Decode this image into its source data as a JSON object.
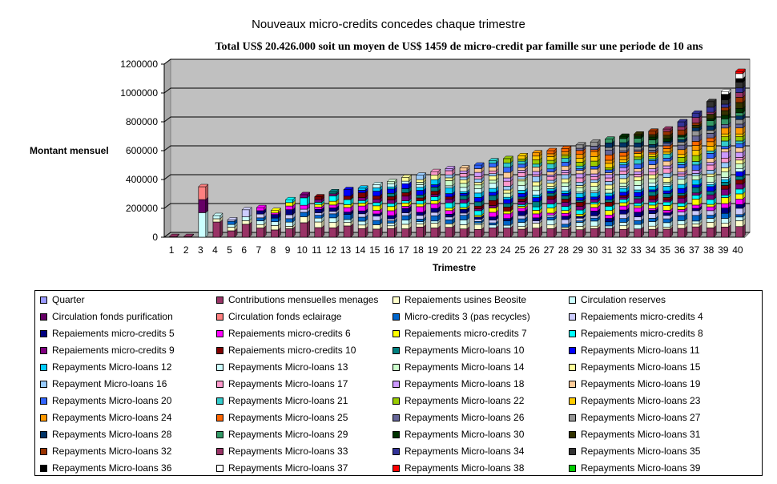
{
  "title": "Nouveaux micro-credits concedes chaque trimestre",
  "subtitle": "Total US$ 20.426.000 soit un moyen de US$ 1459 de micro-credit  par famille sur une periode de 10 ans",
  "chart_data": {
    "type": "bar",
    "stacked": true,
    "three_d": true,
    "plot_background": "#c0c0c0",
    "xlabel": "Trimestre",
    "ylabel": "Montant mensuel",
    "ylim": [
      0,
      1200000
    ],
    "yticks": [
      "0",
      "200000",
      "400000",
      "600000",
      "800000",
      "1000000",
      "1200000"
    ],
    "grid": true,
    "legend_position": "bottom",
    "categories": [
      "1",
      "2",
      "3",
      "4",
      "5",
      "6",
      "7",
      "8",
      "9",
      "10",
      "11",
      "12",
      "13",
      "14",
      "15",
      "16",
      "17",
      "18",
      "19",
      "20",
      "21",
      "22",
      "23",
      "24",
      "25",
      "26",
      "27",
      "28",
      "29",
      "30",
      "31",
      "32",
      "33",
      "34",
      "35",
      "36",
      "37",
      "38",
      "39",
      "40"
    ],
    "totals": [
      5000,
      5000,
      350000,
      150000,
      120000,
      190000,
      205000,
      185000,
      260000,
      295000,
      280000,
      315000,
      330000,
      340000,
      365000,
      385000,
      415000,
      430000,
      455000,
      475000,
      480000,
      500000,
      530000,
      545000,
      565000,
      585000,
      600000,
      615000,
      640000,
      660000,
      680000,
      700000,
      715000,
      735000,
      750000,
      800000,
      860000,
      940000,
      1010000,
      1150000
    ],
    "series": [
      {
        "name": "Quarter",
        "color": "#9999ff"
      },
      {
        "name": "Contributions mensuelles menages",
        "color": "#993366"
      },
      {
        "name": "Repaiements usines Beosite",
        "color": "#ffffcc"
      },
      {
        "name": "Circulation reserves",
        "color": "#ccffff"
      },
      {
        "name": "Circulation fonds purification",
        "color": "#660066"
      },
      {
        "name": "Circulation fonds eclairage",
        "color": "#ff8080"
      },
      {
        "name": "Micro-credits 3 (pas recycles)",
        "color": "#0066cc"
      },
      {
        "name": "Repaiements micro-credits 4",
        "color": "#ccccff"
      },
      {
        "name": "Repaiements micro-credits 5",
        "color": "#000080"
      },
      {
        "name": "Repaiements micro-credits 6",
        "color": "#ff00ff"
      },
      {
        "name": "Repaiements micro-credits 7",
        "color": "#ffff00"
      },
      {
        "name": "Repaiements micro-credits 8",
        "color": "#00ffff"
      },
      {
        "name": "Repaiements micro-credits 9",
        "color": "#800080"
      },
      {
        "name": "Repaiements micro-credits 10",
        "color": "#800000"
      },
      {
        "name": "Repayments Micro-loans 10",
        "color": "#008080"
      },
      {
        "name": "Repayments Micro-loans 11",
        "color": "#0000ff"
      },
      {
        "name": "Repayments Micro-loans 12",
        "color": "#00ccff"
      },
      {
        "name": "Repayments Micro-loans 13",
        "color": "#ccffff"
      },
      {
        "name": "Repayments Micro-loans 14",
        "color": "#ccffcc"
      },
      {
        "name": "Repayments Micro-loans 15",
        "color": "#ffff99"
      },
      {
        "name": "Repayment Micro-loans 16",
        "color": "#99ccff"
      },
      {
        "name": "Repayments Micro-loans 17",
        "color": "#ff99cc"
      },
      {
        "name": "Repayments Micro-loans 18",
        "color": "#cc99ff"
      },
      {
        "name": "Repayments Micro-loans 19",
        "color": "#ffcc99"
      },
      {
        "name": "Repayments Micro-loans 20",
        "color": "#3366ff"
      },
      {
        "name": "Repayments Micro-loans 21",
        "color": "#33cccc"
      },
      {
        "name": "Repayments Micro-loans 22",
        "color": "#99cc00"
      },
      {
        "name": "Repayments Micro-loans 23",
        "color": "#ffcc00"
      },
      {
        "name": "Repayments Micro-loans 24",
        "color": "#ff9900"
      },
      {
        "name": "Repayments Micro-loans 25",
        "color": "#ff6600"
      },
      {
        "name": "Repayments Micro-loans 26",
        "color": "#666699"
      },
      {
        "name": "Repayments Micro-loans 27",
        "color": "#969696"
      },
      {
        "name": "Repayments Micro-loans 28",
        "color": "#003366"
      },
      {
        "name": "Repayments Micro-loans 29",
        "color": "#339966"
      },
      {
        "name": "Repayments Micro-loans 30",
        "color": "#003300"
      },
      {
        "name": "Repayments Micro-loans 31",
        "color": "#333300"
      },
      {
        "name": "Repayments Micro-loans 32",
        "color": "#993300"
      },
      {
        "name": "Repayments Micro-loans 33",
        "color": "#993366"
      },
      {
        "name": "Repayments Micro-loans 34",
        "color": "#333399"
      },
      {
        "name": "Repayments Micro-loans 35",
        "color": "#333333"
      },
      {
        "name": "Repayments Micro-loans 36",
        "color": "#000000"
      },
      {
        "name": "Repayments Micro-loans 37",
        "color": "#ffffff"
      },
      {
        "name": "Repayments Micro-loans 38",
        "color": "#ff0000"
      },
      {
        "name": "Repayments Micro-loans 39",
        "color": "#00cc00"
      }
    ]
  }
}
